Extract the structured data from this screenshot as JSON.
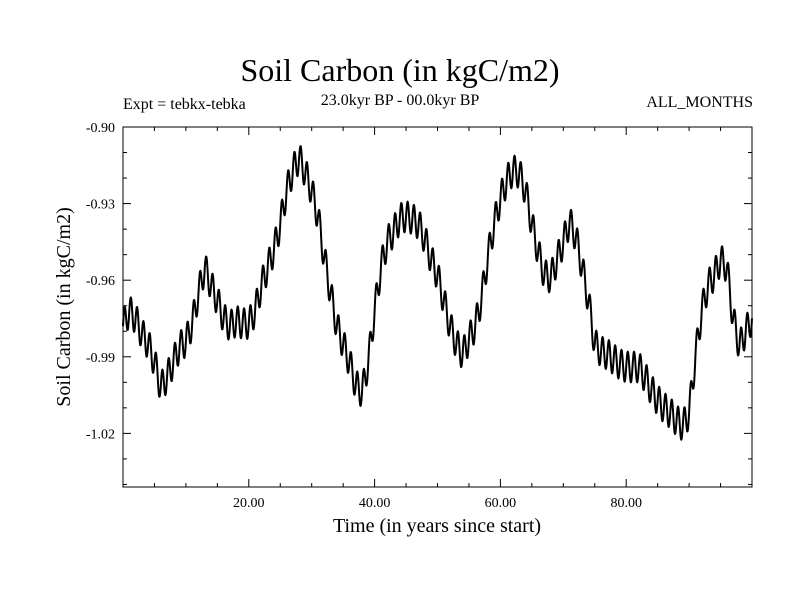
{
  "header": {
    "title": "Soil Carbon (in kgC/m2)",
    "experiment": "Expt = tebkx-tebka",
    "period": "23.0kyr BP - 00.0kyr BP",
    "months": "ALL_MONTHS"
  },
  "chart_data": {
    "type": "line",
    "title": "Soil Carbon (in kgC/m2)",
    "xlabel": "Time (in years since start)",
    "ylabel": "Soil Carbon (in kgC/m2)",
    "xlim": [
      0,
      100
    ],
    "ylim": [
      -1.041,
      -0.9
    ],
    "x_ticks": [
      20,
      40,
      60,
      80
    ],
    "x_tick_labels": [
      "20.00",
      "40.00",
      "60.00",
      "80.00"
    ],
    "y_ticks": [
      -0.9,
      -0.93,
      -0.96,
      -0.99,
      -1.02
    ],
    "y_tick_labels": [
      "-0.90",
      "-0.93",
      "-0.96",
      "-0.99",
      "-1.02"
    ],
    "grid": false,
    "line_color": "#000000",
    "oscillation_amplitude": 0.006,
    "oscillation_period": 1,
    "series": [
      {
        "name": "Soil Carbon",
        "x": [
          0,
          1,
          2,
          3,
          4,
          5,
          6,
          7,
          8,
          9,
          10,
          11,
          12,
          13,
          14,
          15,
          16,
          17,
          18,
          19,
          20,
          21,
          22,
          23,
          24,
          25,
          26,
          27,
          28,
          29,
          30,
          31,
          32,
          33,
          34,
          35,
          36,
          37,
          38,
          39,
          40,
          41,
          42,
          43,
          44,
          45,
          46,
          47,
          48,
          49,
          50,
          51,
          52,
          53,
          54,
          55,
          56,
          57,
          58,
          59,
          60,
          61,
          62,
          63,
          64,
          65,
          66,
          67,
          68,
          69,
          70,
          71,
          72,
          73,
          74,
          75,
          76,
          77,
          78,
          79,
          80,
          81,
          82,
          83,
          84,
          85,
          86,
          87,
          88,
          89,
          90,
          91,
          92,
          93,
          94,
          95,
          96,
          97,
          98,
          99,
          100
        ],
        "y": [
          -0.978,
          -0.972,
          -0.975,
          -0.981,
          -0.985,
          -0.992,
          -1.002,
          -0.998,
          -0.992,
          -0.986,
          -0.984,
          -0.977,
          -0.965,
          -0.955,
          -0.962,
          -0.968,
          -0.975,
          -0.978,
          -0.976,
          -0.977,
          -0.977,
          -0.972,
          -0.962,
          -0.955,
          -0.948,
          -0.938,
          -0.925,
          -0.917,
          -0.912,
          -0.918,
          -0.925,
          -0.935,
          -0.951,
          -0.965,
          -0.978,
          -0.985,
          -0.992,
          -1.001,
          -1.004,
          -0.992,
          -0.972,
          -0.955,
          -0.945,
          -0.941,
          -0.936,
          -0.935,
          -0.936,
          -0.938,
          -0.944,
          -0.952,
          -0.958,
          -0.968,
          -0.978,
          -0.985,
          -0.989,
          -0.983,
          -0.978,
          -0.967,
          -0.951,
          -0.938,
          -0.928,
          -0.921,
          -0.917,
          -0.918,
          -0.925,
          -0.938,
          -0.949,
          -0.958,
          -0.959,
          -0.952,
          -0.945,
          -0.937,
          -0.943,
          -0.955,
          -0.968,
          -0.985,
          -0.988,
          -0.989,
          -0.991,
          -0.993,
          -0.994,
          -0.994,
          -0.994,
          -0.998,
          -1.003,
          -1.007,
          -1.01,
          -1.012,
          -1.015,
          -1.017,
          -1.012,
          -0.99,
          -0.972,
          -0.962,
          -0.958,
          -0.952,
          -0.955,
          -0.975,
          -0.986,
          -0.98,
          -0.975
        ]
      }
    ]
  }
}
